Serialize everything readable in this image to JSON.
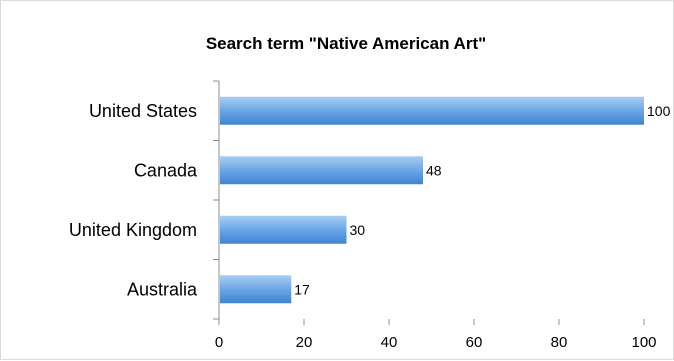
{
  "chart_data": {
    "type": "bar",
    "orientation": "horizontal",
    "title": "Search term \"Native American Art\"",
    "categories": [
      "United States",
      "Canada",
      "United Kingdom",
      "Australia"
    ],
    "values": [
      100,
      48,
      30,
      17
    ],
    "data_labels": [
      "100",
      "48",
      "30",
      "17"
    ],
    "xlim": [
      0,
      100
    ],
    "xticks": [
      0,
      20,
      40,
      60,
      80,
      100
    ],
    "xlabel": "",
    "ylabel": "",
    "grid": false,
    "legend": "none",
    "bar_color": "#5b9bd5"
  }
}
